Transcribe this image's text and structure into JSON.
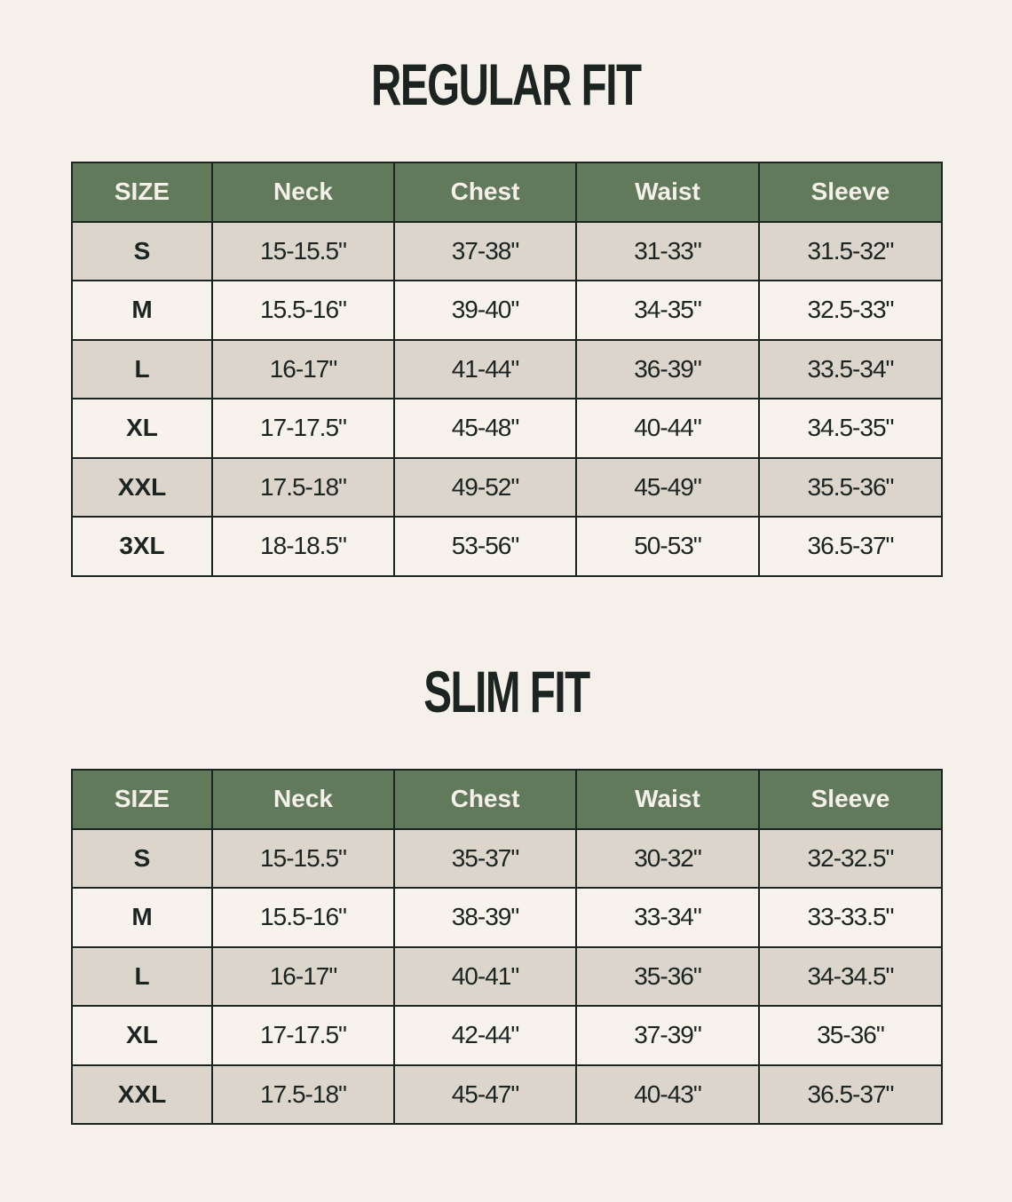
{
  "colors": {
    "header": "#627a5c",
    "row_shaded": "#dcd5cb",
    "row_plain": "#f7f3ec",
    "background": "#f5f1ea",
    "text": "#1c2422"
  },
  "tables": [
    {
      "title": "REGULAR FIT",
      "headers": [
        "SIZE",
        "Neck",
        "Chest",
        "Waist",
        "Sleeve"
      ],
      "rows": [
        [
          "S",
          "15-15.5\"",
          "37-38\"",
          "31-33\"",
          "31.5-32\""
        ],
        [
          "M",
          "15.5-16\"",
          "39-40\"",
          "34-35\"",
          "32.5-33\""
        ],
        [
          "L",
          "16-17\"",
          "41-44\"",
          "36-39\"",
          "33.5-34\""
        ],
        [
          "XL",
          "17-17.5\"",
          "45-48\"",
          "40-44\"",
          "34.5-35\""
        ],
        [
          "XXL",
          "17.5-18\"",
          "49-52\"",
          "45-49\"",
          "35.5-36\""
        ],
        [
          "3XL",
          "18-18.5\"",
          "53-56\"",
          "50-53\"",
          "36.5-37\""
        ]
      ]
    },
    {
      "title": "SLIM FIT",
      "headers": [
        "SIZE",
        "Neck",
        "Chest",
        "Waist",
        "Sleeve"
      ],
      "rows": [
        [
          "S",
          "15-15.5\"",
          "35-37\"",
          "30-32\"",
          "32-32.5\""
        ],
        [
          "M",
          "15.5-16\"",
          "38-39\"",
          "33-34\"",
          "33-33.5\""
        ],
        [
          "L",
          "16-17\"",
          "40-41\"",
          "35-36\"",
          "34-34.5\""
        ],
        [
          "XL",
          "17-17.5\"",
          "42-44\"",
          "37-39\"",
          "35-36\""
        ],
        [
          "XXL",
          "17.5-18\"",
          "45-47\"",
          "40-43\"",
          "36.5-37\""
        ]
      ]
    }
  ]
}
